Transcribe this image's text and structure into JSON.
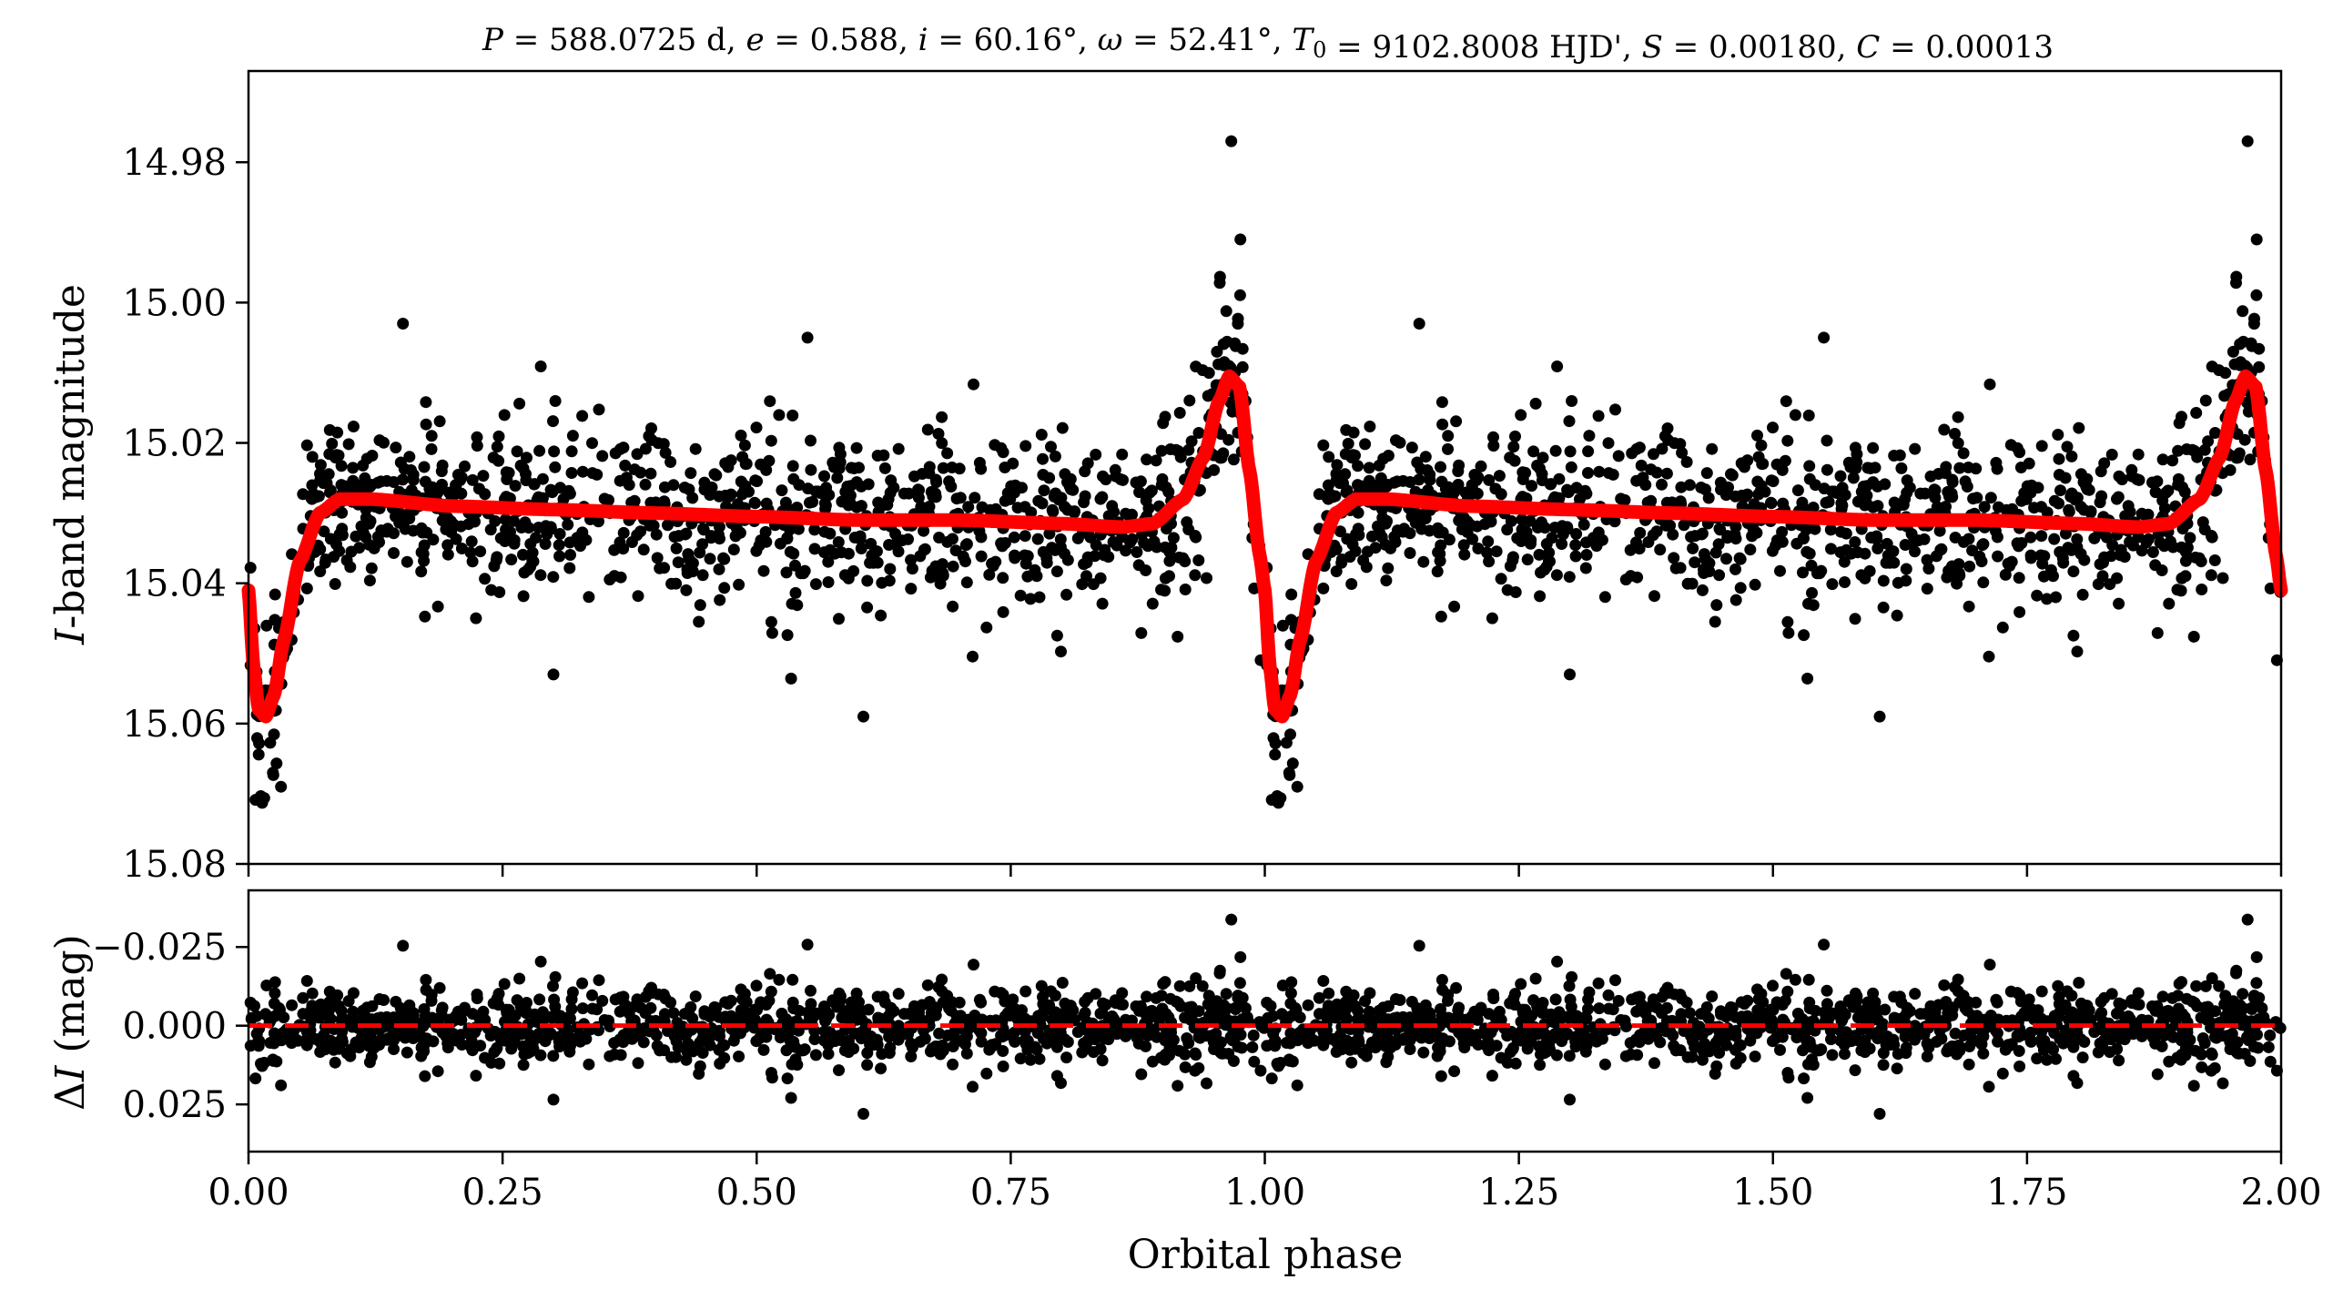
{
  "chart_data": [
    {
      "id": "lightcurve",
      "type": "scatter",
      "title_parts": [
        {
          "t": "P",
          "i": true
        },
        {
          "t": " = 588.0725 d, "
        },
        {
          "t": "e",
          "i": true
        },
        {
          "t": " = 0.588, "
        },
        {
          "t": "i",
          "i": true
        },
        {
          "t": " = 60.16°, "
        },
        {
          "t": "ω",
          "i": true
        },
        {
          "t": " = 52.41°, "
        },
        {
          "t": "T",
          "i": true
        },
        {
          "t": "0",
          "sub": true
        },
        {
          "t": " = 9102.8008 HJD', "
        },
        {
          "t": "S",
          "i": true
        },
        {
          "t": " = 0.00180, "
        },
        {
          "t": "C",
          "i": true
        },
        {
          "t": " = 0.00013"
        }
      ],
      "ylabel_italic": "I",
      "ylabel": "-band magnitude",
      "xlim": [
        0.0,
        2.0
      ],
      "ylim": [
        15.08,
        14.967
      ],
      "y_inverted": true,
      "yticks": [
        14.98,
        15.0,
        15.02,
        15.04,
        15.06,
        15.08
      ],
      "ytick_labels": [
        "14.98",
        "15.00",
        "15.02",
        "15.04",
        "15.06",
        "15.08"
      ],
      "xticks": [
        0.0,
        0.25,
        0.5,
        0.75,
        1.0,
        1.25,
        1.5,
        1.75,
        2.0
      ],
      "series": [
        {
          "name": "observations",
          "kind": "points",
          "color": "#000000",
          "n_points_per_cycle": 1050,
          "baseline_mag": 15.031,
          "scatter_sigma_mag": 0.006
        },
        {
          "name": "model fit",
          "kind": "line",
          "color": "#ff0000",
          "x": [
            0.0,
            0.005,
            0.01,
            0.017,
            0.025,
            0.035,
            0.05,
            0.07,
            0.09,
            0.12,
            0.2,
            0.3,
            0.4,
            0.5,
            0.6,
            0.7,
            0.8,
            0.86,
            0.89,
            0.92,
            0.94,
            0.955,
            0.965,
            0.975,
            0.985,
            0.995,
            1.0
          ],
          "y": [
            15.041,
            15.052,
            15.058,
            15.059,
            15.056,
            15.048,
            15.037,
            15.03,
            15.028,
            15.028,
            15.029,
            15.0295,
            15.03,
            15.0305,
            15.031,
            15.031,
            15.0315,
            15.032,
            15.0315,
            15.028,
            15.022,
            15.014,
            15.0105,
            15.012,
            15.024,
            15.036,
            15.041
          ],
          "periodic": true
        }
      ],
      "notable_points": [
        {
          "x": 0.967,
          "y": 14.977
        },
        {
          "x": 0.976,
          "y": 14.991
        },
        {
          "x": 0.152,
          "y": 15.003
        },
        {
          "x": 0.032,
          "y": 15.069
        },
        {
          "x": 0.024,
          "y": 15.067
        },
        {
          "x": 0.605,
          "y": 15.059
        },
        {
          "x": 0.3,
          "y": 15.053
        },
        {
          "x": 0.55,
          "y": 15.005
        }
      ]
    },
    {
      "id": "residuals",
      "type": "scatter",
      "ylabel_prefix": "Δ",
      "ylabel_italic": "I",
      "ylabel": " (mag)",
      "xlabel": "Orbital phase",
      "xlim": [
        0.0,
        2.0
      ],
      "ylim": [
        0.04,
        -0.043
      ],
      "y_inverted": true,
      "yticks": [
        -0.025,
        0.0,
        0.025
      ],
      "ytick_labels": [
        "−0.025",
        "0.000",
        "0.025"
      ],
      "xticks": [
        0.0,
        0.25,
        0.5,
        0.75,
        1.0,
        1.25,
        1.5,
        1.75,
        2.0
      ],
      "xtick_labels": [
        "0.00",
        "0.25",
        "0.50",
        "0.75",
        "1.00",
        "1.25",
        "1.50",
        "1.75",
        "2.00"
      ],
      "series": [
        {
          "name": "residuals",
          "kind": "points",
          "color": "#000000",
          "scatter_sigma_mag": 0.006
        },
        {
          "name": "zero line",
          "kind": "hline",
          "y": 0.0,
          "color": "#ff0000",
          "dashed": true
        }
      ],
      "notable_points": [
        {
          "x": 0.967,
          "y": -0.035
        },
        {
          "x": 0.152,
          "y": -0.025
        },
        {
          "x": 0.55,
          "y": -0.025
        },
        {
          "x": 0.605,
          "y": 0.029
        },
        {
          "x": 0.3,
          "y": 0.023
        },
        {
          "x": 0.96,
          "y": 0.028
        }
      ]
    }
  ]
}
